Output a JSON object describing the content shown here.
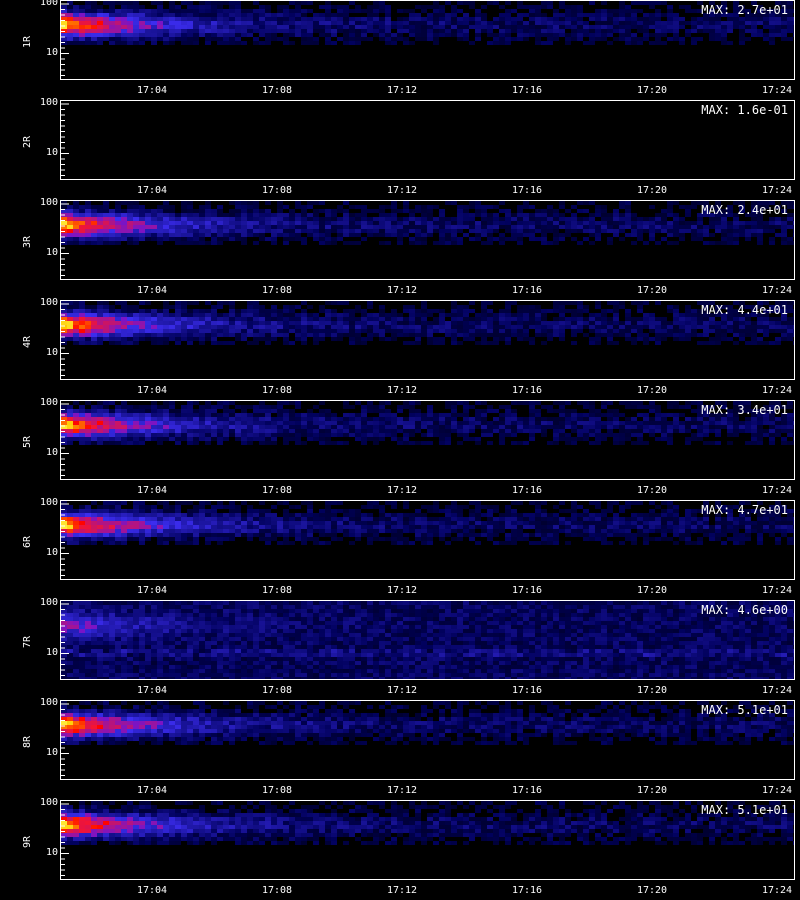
{
  "chart_data": [
    {
      "type": "heatmap",
      "ylabel": "1R",
      "max_label": "MAX: 2.7e+01",
      "yticks": [
        "100",
        "10"
      ],
      "xticks": [
        "17:04",
        "17:08",
        "17:12",
        "17:16",
        "17:20",
        "17:24"
      ],
      "max": 27,
      "scale": "log-y"
    },
    {
      "type": "heatmap",
      "ylabel": "2R",
      "max_label": "MAX: 1.6e-01",
      "yticks": [
        "100",
        "10"
      ],
      "xticks": [
        "17:04",
        "17:08",
        "17:12",
        "17:16",
        "17:20",
        "17:24"
      ],
      "max": 0.16,
      "scale": "log-y"
    },
    {
      "type": "heatmap",
      "ylabel": "3R",
      "max_label": "MAX: 2.4e+01",
      "yticks": [
        "100",
        "10"
      ],
      "xticks": [
        "17:04",
        "17:08",
        "17:12",
        "17:16",
        "17:20",
        "17:24"
      ],
      "max": 24,
      "scale": "log-y"
    },
    {
      "type": "heatmap",
      "ylabel": "4R",
      "max_label": "MAX: 4.4e+01",
      "yticks": [
        "100",
        "10"
      ],
      "xticks": [
        "17:04",
        "17:08",
        "17:12",
        "17:16",
        "17:20",
        "17:24"
      ],
      "max": 44,
      "scale": "log-y"
    },
    {
      "type": "heatmap",
      "ylabel": "5R",
      "max_label": "MAX: 3.4e+01",
      "yticks": [
        "100",
        "10"
      ],
      "xticks": [
        "17:04",
        "17:08",
        "17:12",
        "17:16",
        "17:20",
        "17:24"
      ],
      "max": 34,
      "scale": "log-y"
    },
    {
      "type": "heatmap",
      "ylabel": "6R",
      "max_label": "MAX: 4.7e+01",
      "yticks": [
        "100",
        "10"
      ],
      "xticks": [
        "17:04",
        "17:08",
        "17:12",
        "17:16",
        "17:20",
        "17:24"
      ],
      "max": 47,
      "scale": "log-y"
    },
    {
      "type": "heatmap",
      "ylabel": "7R",
      "max_label": "MAX: 4.6e+00",
      "yticks": [
        "100",
        "10"
      ],
      "xticks": [
        "17:04",
        "17:08",
        "17:12",
        "17:16",
        "17:20",
        "17:24"
      ],
      "max": 4.6,
      "scale": "log-y"
    },
    {
      "type": "heatmap",
      "ylabel": "8R",
      "max_label": "MAX: 5.1e+01",
      "yticks": [
        "100",
        "10"
      ],
      "xticks": [
        "17:04",
        "17:08",
        "17:12",
        "17:16",
        "17:20",
        "17:24"
      ],
      "max": 51,
      "scale": "log-y"
    },
    {
      "type": "heatmap",
      "ylabel": "9R",
      "max_label": "MAX: 5.1e+01",
      "yticks": [
        "100",
        "10"
      ],
      "xticks": [
        "17:04",
        "17:08",
        "17:12",
        "17:16",
        "17:20",
        "17:24"
      ],
      "max": 51,
      "scale": "log-y"
    }
  ],
  "colors": {
    "background": "#000000",
    "low": "#0a0a60",
    "mid": "#2030d0",
    "high": "#ff3000",
    "peak": "#ffee40"
  }
}
